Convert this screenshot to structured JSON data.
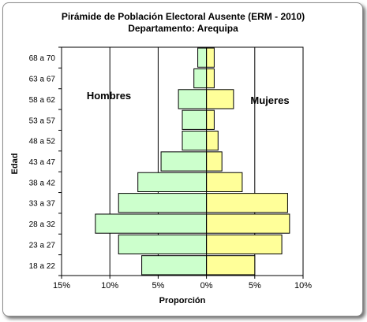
{
  "chart_data": {
    "type": "bar",
    "orientation": "horizontal-population-pyramid",
    "title": "Pirámide de Población Electoral Ausente (ERM - 2010)",
    "subtitle": "Departamento: Arequipa",
    "xlabel": "Proporción",
    "ylabel": "Edad",
    "categories": [
      "68 a 70",
      "63 a 67",
      "58 a 62",
      "53 a 57",
      "48 a 52",
      "43 a 47",
      "38 a 42",
      "33 a 37",
      "28 a 32",
      "23 a 27",
      "18 a 22"
    ],
    "series": [
      {
        "name": "Hombres",
        "values": [
          0.9,
          1.3,
          2.9,
          2.5,
          2.5,
          4.7,
          7.1,
          9.1,
          11.5,
          9.1,
          6.7
        ],
        "color": "#ccffcc"
      },
      {
        "name": "Mujeres",
        "values": [
          0.8,
          0.8,
          2.8,
          0.8,
          1.2,
          1.6,
          3.7,
          8.4,
          8.6,
          7.8,
          5.0
        ],
        "color": "#ffff99"
      }
    ],
    "xlim": [
      -15,
      10
    ],
    "xticks": [
      -15,
      -10,
      -5,
      0,
      5,
      10
    ],
    "xtick_labels": [
      "15%",
      "10%",
      "5%",
      "0%",
      "5%",
      "10%"
    ],
    "grid": "vertical major gridlines",
    "legend": "none (side labels inside plot: left 'Hombres', right 'Mujeres')"
  }
}
